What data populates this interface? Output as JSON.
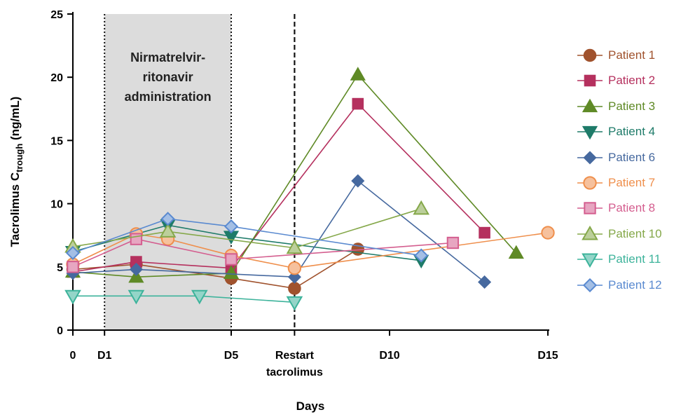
{
  "chart_data": {
    "type": "line",
    "xlabel": "Days",
    "ylabel_main": "Tacrolimus C",
    "ylabel_sub": "trough",
    "ylabel_unit": " (ng/mL)",
    "ylim": [
      0,
      25
    ],
    "xlim": [
      0,
      15
    ],
    "y_ticks": [
      0,
      5,
      10,
      15,
      20,
      25
    ],
    "x_ticks": [
      {
        "value": 0,
        "lines": [
          "0"
        ]
      },
      {
        "value": 1,
        "lines": [
          "D1"
        ]
      },
      {
        "value": 5,
        "lines": [
          "D5"
        ]
      },
      {
        "value": 7,
        "lines": [
          "Restart",
          "tacrolimus"
        ]
      },
      {
        "value": 10,
        "lines": [
          "D10"
        ]
      },
      {
        "value": 15,
        "lines": [
          "D15"
        ]
      }
    ],
    "shaded_region": {
      "x_start": 1,
      "x_end": 5,
      "lines": [
        "Nirmatrelvir-",
        "ritonavir",
        "administration"
      ],
      "color": "#dcdcdc"
    },
    "vertical_lines": [
      {
        "x": 1,
        "style": "dotted"
      },
      {
        "x": 5,
        "style": "dotted"
      },
      {
        "x": 7,
        "style": "dashed"
      }
    ],
    "grid": false,
    "legend_position": "right",
    "series": [
      {
        "name": "Patient 1",
        "color": "#a0522d",
        "marker": "circle",
        "filled": true,
        "points": [
          [
            0,
            4.8
          ],
          [
            2,
            5.2
          ],
          [
            5,
            4.1
          ],
          [
            7,
            3.3
          ],
          [
            9,
            6.4
          ]
        ]
      },
      {
        "name": "Patient 2",
        "color": "#b5305e",
        "marker": "square",
        "filled": true,
        "points": [
          [
            0,
            4.6
          ],
          [
            2,
            5.4
          ],
          [
            5,
            4.9
          ],
          [
            9,
            17.9
          ],
          [
            13,
            7.7
          ]
        ]
      },
      {
        "name": "Patient 3",
        "color": "#5f8a26",
        "marker": "triangle-up",
        "filled": true,
        "points": [
          [
            0,
            4.6
          ],
          [
            2,
            4.2
          ],
          [
            5,
            4.5
          ],
          [
            9,
            20.2
          ],
          [
            14,
            6.1
          ]
        ]
      },
      {
        "name": "Patient 4",
        "color": "#1e7b69",
        "marker": "triangle-down",
        "filled": true,
        "points": [
          [
            0,
            6.2
          ],
          [
            3,
            8.3
          ],
          [
            5,
            7.4
          ],
          [
            11,
            5.5
          ]
        ]
      },
      {
        "name": "Patient 6",
        "color": "#46699f",
        "marker": "diamond",
        "filled": true,
        "points": [
          [
            0,
            4.5
          ],
          [
            2,
            4.8
          ],
          [
            7,
            4.2
          ],
          [
            9,
            11.8
          ],
          [
            13,
            3.8
          ]
        ]
      },
      {
        "name": "Patient 7",
        "color": "#ef8f4c",
        "marker": "circle",
        "filled": false,
        "points": [
          [
            0,
            5.2
          ],
          [
            2,
            7.6
          ],
          [
            3,
            7.2
          ],
          [
            5,
            5.9
          ],
          [
            7,
            4.9
          ],
          [
            15,
            7.7
          ]
        ]
      },
      {
        "name": "Patient 8",
        "color": "#d45e8f",
        "marker": "square",
        "filled": false,
        "points": [
          [
            0,
            5.0
          ],
          [
            2,
            7.2
          ],
          [
            5,
            5.6
          ],
          [
            12,
            6.9
          ]
        ]
      },
      {
        "name": "Patient 10",
        "color": "#85a84a",
        "marker": "triangle-up",
        "filled": false,
        "points": [
          [
            0,
            6.6
          ],
          [
            3,
            7.8
          ],
          [
            7,
            6.5
          ],
          [
            11,
            9.6
          ]
        ]
      },
      {
        "name": "Patient 11",
        "color": "#3db39b",
        "marker": "triangle-down",
        "filled": false,
        "points": [
          [
            0,
            2.7
          ],
          [
            2,
            2.7
          ],
          [
            4,
            2.7
          ],
          [
            7,
            2.2
          ]
        ]
      },
      {
        "name": "Patient 12",
        "color": "#5a8ad0",
        "marker": "diamond",
        "filled": false,
        "points": [
          [
            0,
            6.1
          ],
          [
            3,
            8.8
          ],
          [
            5,
            8.2
          ],
          [
            11,
            5.9
          ]
        ]
      }
    ]
  }
}
